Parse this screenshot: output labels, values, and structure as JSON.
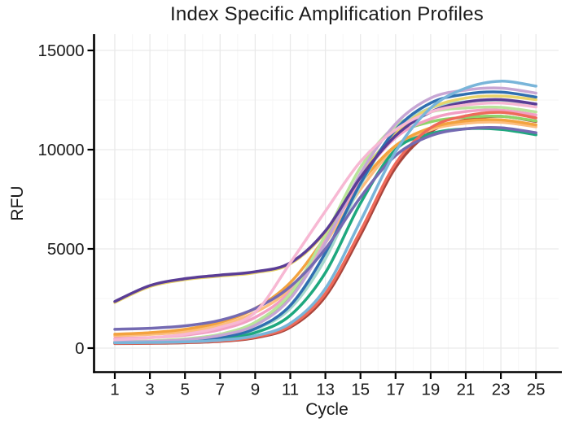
{
  "window": {
    "background": "#ffffff"
  },
  "chart_data": {
    "type": "line",
    "title": "Index Specific Amplification Profiles",
    "xlabel": "Cycle",
    "ylabel": "RFU",
    "xlim": [
      1,
      25
    ],
    "ylim": [
      0,
      15000
    ],
    "x_ticks": [
      1,
      3,
      5,
      7,
      9,
      11,
      13,
      15,
      17,
      19,
      21,
      23,
      25
    ],
    "y_ticks": [
      0,
      5000,
      10000,
      15000
    ],
    "grid": {
      "visible": true,
      "major_color": "#e9e9e9",
      "minor_color": "#f6f6f6"
    },
    "legend": "none",
    "axis_color": "#000000",
    "text_color": "#1a1a1a",
    "x": [
      1,
      3,
      5,
      7,
      9,
      11,
      13,
      15,
      17,
      19,
      21,
      23,
      25
    ],
    "series": [
      {
        "name": "brick",
        "color": "#a8453c",
        "values": [
          230,
          242,
          272,
          338,
          520,
          1050,
          2600,
          5700,
          9100,
          10900,
          11500,
          11680,
          11420
        ]
      },
      {
        "name": "orange-light",
        "color": "#fcbd7e",
        "values": [
          620,
          690,
          830,
          1150,
          1800,
          3000,
          5300,
          8000,
          10100,
          11000,
          11330,
          11380,
          11150
        ]
      },
      {
        "name": "amber",
        "color": "#f3a33f",
        "values": [
          700,
          780,
          950,
          1300,
          2000,
          3300,
          5600,
          8300,
          10200,
          11100,
          11450,
          11500,
          11250
        ]
      },
      {
        "name": "green-light",
        "color": "#8fd468",
        "values": [
          310,
          345,
          440,
          680,
          1280,
          2700,
          5500,
          8700,
          10700,
          11400,
          11630,
          11680,
          11450
        ]
      },
      {
        "name": "pink-medium",
        "color": "#f29fc4",
        "values": [
          480,
          530,
          650,
          930,
          1550,
          2850,
          5400,
          8500,
          10600,
          11550,
          11920,
          11990,
          11750
        ]
      },
      {
        "name": "green-pale",
        "color": "#b9e49b",
        "values": [
          330,
          365,
          460,
          700,
          1300,
          2750,
          5700,
          9100,
          11200,
          11900,
          12100,
          12130,
          11900
        ]
      },
      {
        "name": "teal-pale",
        "color": "#a5d8cc",
        "values": [
          280,
          300,
          360,
          520,
          950,
          2000,
          4500,
          8200,
          11000,
          12100,
          12420,
          12460,
          12230
        ]
      },
      {
        "name": "yellow",
        "color": "#e9d36a",
        "values": [
          2300,
          3100,
          3450,
          3630,
          3800,
          4250,
          5850,
          8650,
          10850,
          12100,
          12600,
          12700,
          12520
        ]
      },
      {
        "name": "emerald",
        "color": "#1ea87e",
        "values": [
          260,
          278,
          330,
          450,
          780,
          1650,
          3800,
          7300,
          10000,
          10800,
          11050,
          11020,
          10750
        ]
      },
      {
        "name": "salmon",
        "color": "#ee6a5a",
        "values": [
          250,
          262,
          295,
          365,
          560,
          1120,
          2750,
          5900,
          9300,
          11100,
          11700,
          11880,
          11600
        ]
      },
      {
        "name": "steel-blue",
        "color": "#2f6fb0",
        "values": [
          290,
          310,
          370,
          540,
          980,
          2150,
          4800,
          8300,
          11000,
          12350,
          12800,
          12900,
          12650
        ]
      },
      {
        "name": "plum",
        "color": "#c7a6d4",
        "values": [
          310,
          340,
          420,
          640,
          1150,
          2500,
          5300,
          8800,
          11300,
          12600,
          13000,
          13100,
          12850
        ]
      },
      {
        "name": "slate-blue",
        "color": "#746ab2",
        "values": [
          950,
          1000,
          1120,
          1400,
          2000,
          3100,
          5000,
          7600,
          9700,
          10700,
          11050,
          11100,
          10850
        ]
      },
      {
        "name": "purple-dark",
        "color": "#5a3d96",
        "values": [
          2350,
          3150,
          3500,
          3680,
          3850,
          4300,
          5900,
          8600,
          10700,
          11900,
          12400,
          12520,
          12300
        ]
      },
      {
        "name": "pink-light",
        "color": "#f7b8d3",
        "values": [
          420,
          520,
          700,
          1050,
          1800,
          4300,
          6900,
          9400,
          11000,
          11900,
          12250,
          12350,
          12150
        ]
      },
      {
        "name": "sky-blue",
        "color": "#79b5d9",
        "values": [
          270,
          285,
          320,
          400,
          620,
          1250,
          3000,
          6400,
          9900,
          12100,
          13100,
          13450,
          13200
        ]
      }
    ]
  }
}
